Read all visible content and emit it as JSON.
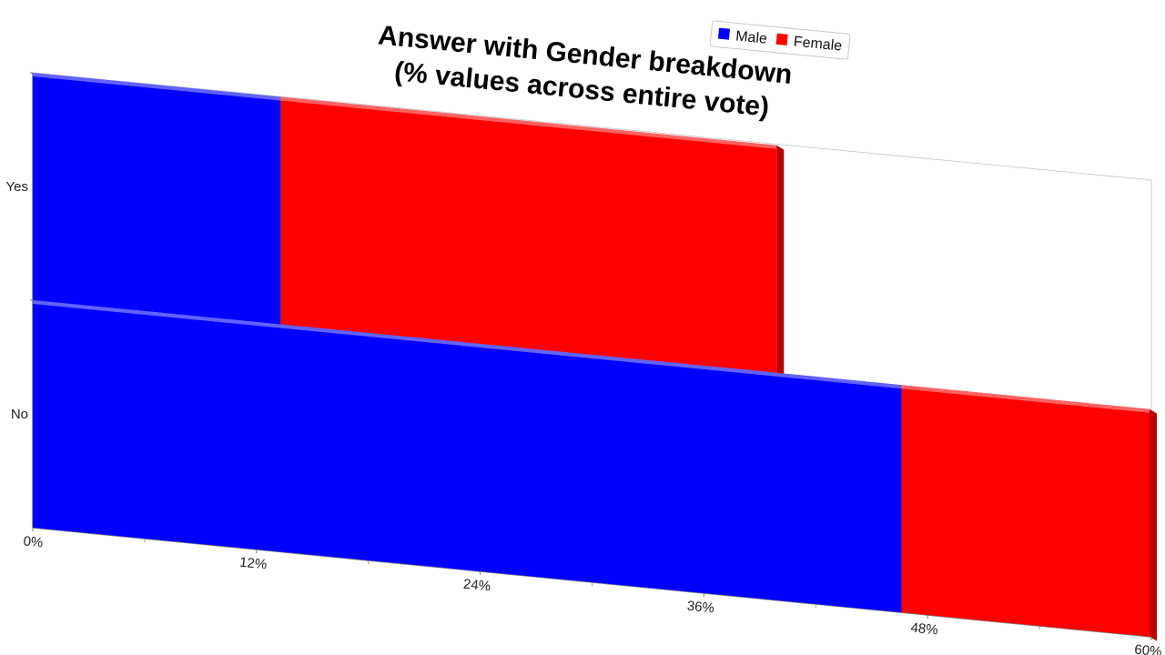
{
  "chart_data": {
    "type": "bar",
    "orientation": "horizontal",
    "stacked": true,
    "title": "Answer with Gender breakdown\n(% values across entire vote)",
    "title_lines": [
      "Answer with Gender breakdown",
      "(% values across entire vote)"
    ],
    "categories": [
      "Yes",
      "No"
    ],
    "series": [
      {
        "name": "Male",
        "color": "#0000ff",
        "values": [
          13.3,
          46.6
        ]
      },
      {
        "name": "Female",
        "color": "#ff0000",
        "values": [
          26.6,
          13.3
        ]
      }
    ],
    "x_ticks": [
      "0%",
      "12%",
      "24%",
      "36%",
      "48%",
      "60%"
    ],
    "xlim": [
      0,
      60
    ],
    "legend": {
      "placement": "top-right",
      "entries": [
        "Male",
        "Female"
      ]
    },
    "grid": false
  }
}
